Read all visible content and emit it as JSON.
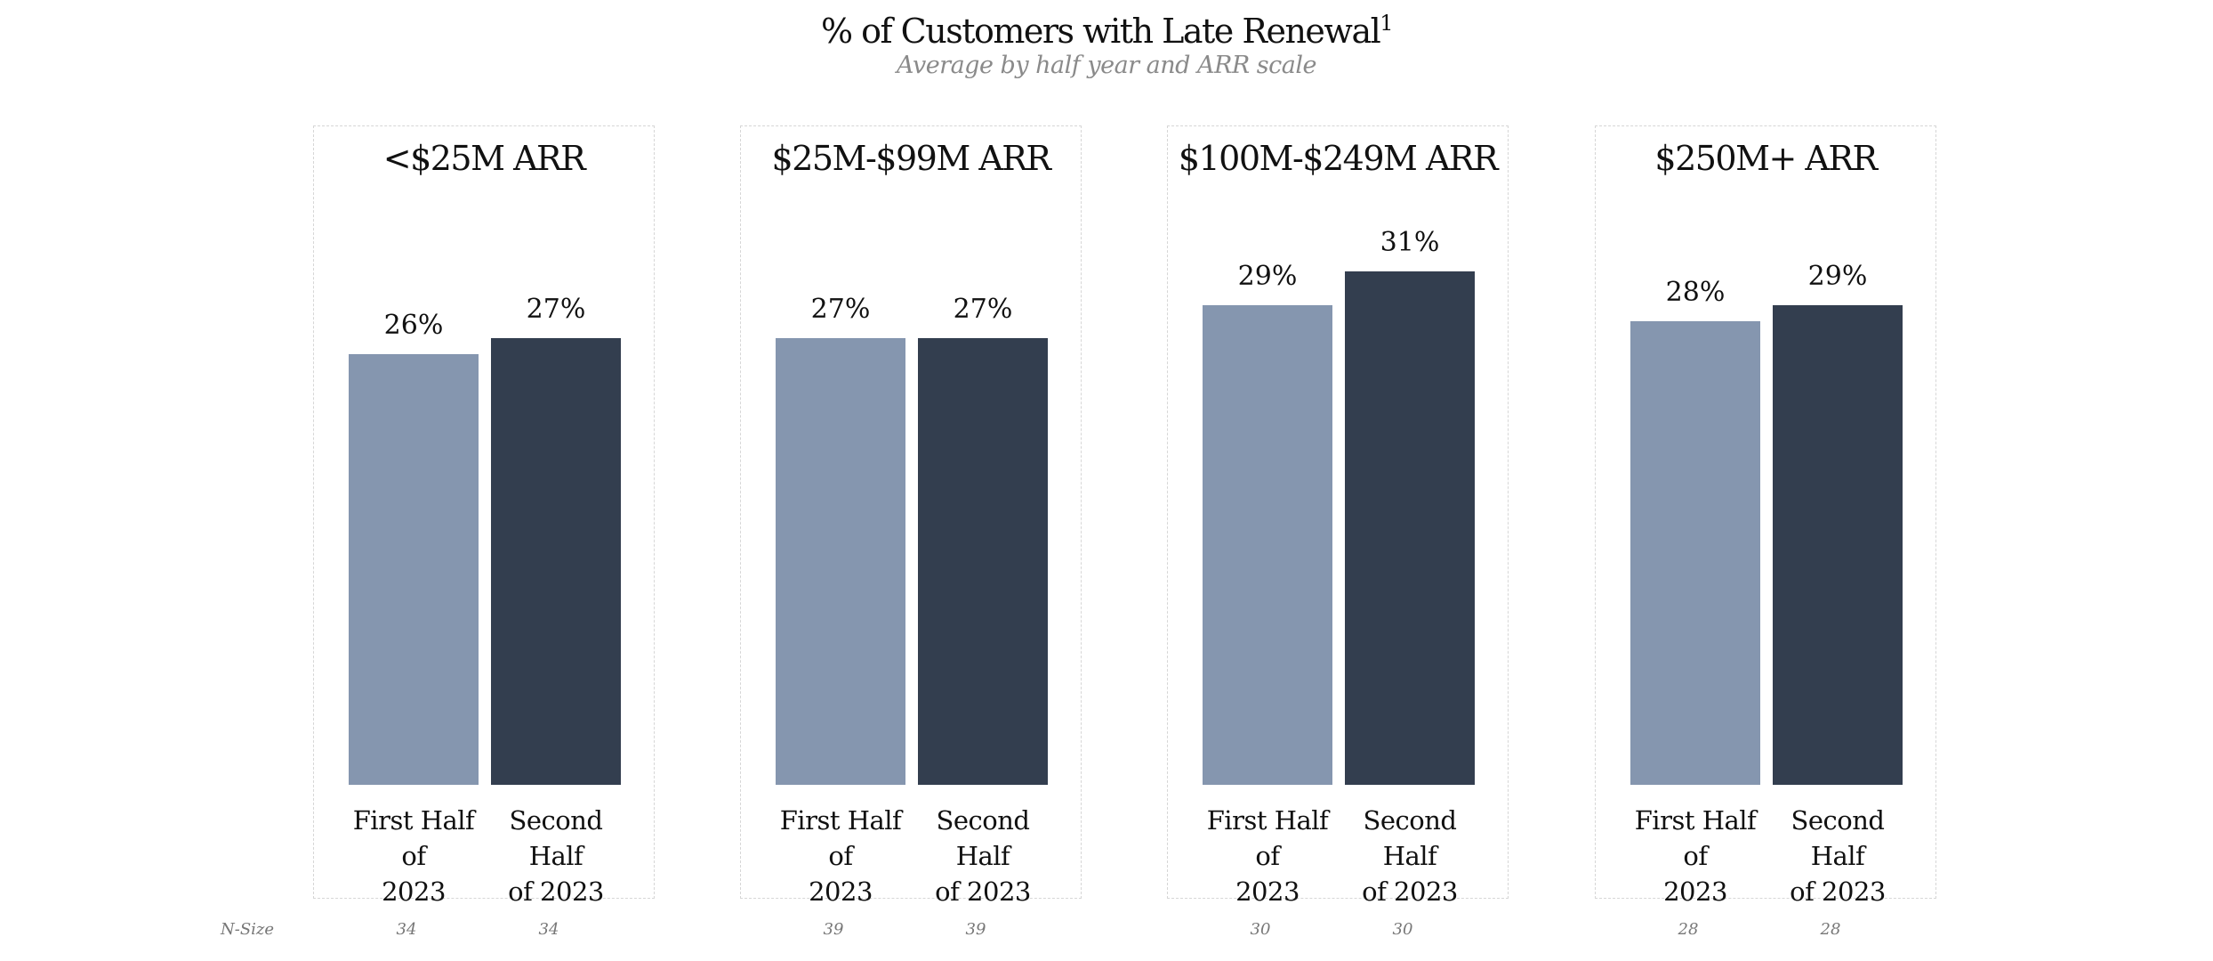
{
  "title": "% of Customers with Late Renewal",
  "title_superscript": "1",
  "subtitle": "Average by half year and ARR scale",
  "n_size_label": "N-Size",
  "colors": {
    "first_half": "#8596AF",
    "second_half": "#333E4F"
  },
  "chart_data": [
    {
      "type": "bar",
      "title": "<$25M ARR",
      "categories": [
        "First Half of 2023",
        "Second Half of 2023"
      ],
      "values": [
        26,
        27
      ],
      "value_labels": [
        "26%",
        "27%"
      ],
      "n_size": [
        "34",
        "34"
      ],
      "ylim": [
        0,
        31
      ]
    },
    {
      "type": "bar",
      "title": "$25M-$99M ARR",
      "categories": [
        "First Half of 2023",
        "Second Half of 2023"
      ],
      "values": [
        27,
        27
      ],
      "value_labels": [
        "27%",
        "27%"
      ],
      "n_size": [
        "39",
        "39"
      ],
      "ylim": [
        0,
        31
      ]
    },
    {
      "type": "bar",
      "title": "$100M-$249M ARR",
      "categories": [
        "First Half of 2023",
        "Second Half of 2023"
      ],
      "values": [
        29,
        31
      ],
      "value_labels": [
        "29%",
        "31%"
      ],
      "n_size": [
        "30",
        "30"
      ],
      "ylim": [
        0,
        31
      ]
    },
    {
      "type": "bar",
      "title": "$250M+ ARR",
      "categories": [
        "First Half of 2023",
        "Second Half of 2023"
      ],
      "values": [
        28,
        29
      ],
      "value_labels": [
        "28%",
        "29%"
      ],
      "n_size": [
        "28",
        "28"
      ],
      "ylim": [
        0,
        31
      ]
    }
  ],
  "category_lines": [
    [
      "First Half of",
      "2023"
    ],
    [
      "Second Half",
      "of 2023"
    ]
  ]
}
